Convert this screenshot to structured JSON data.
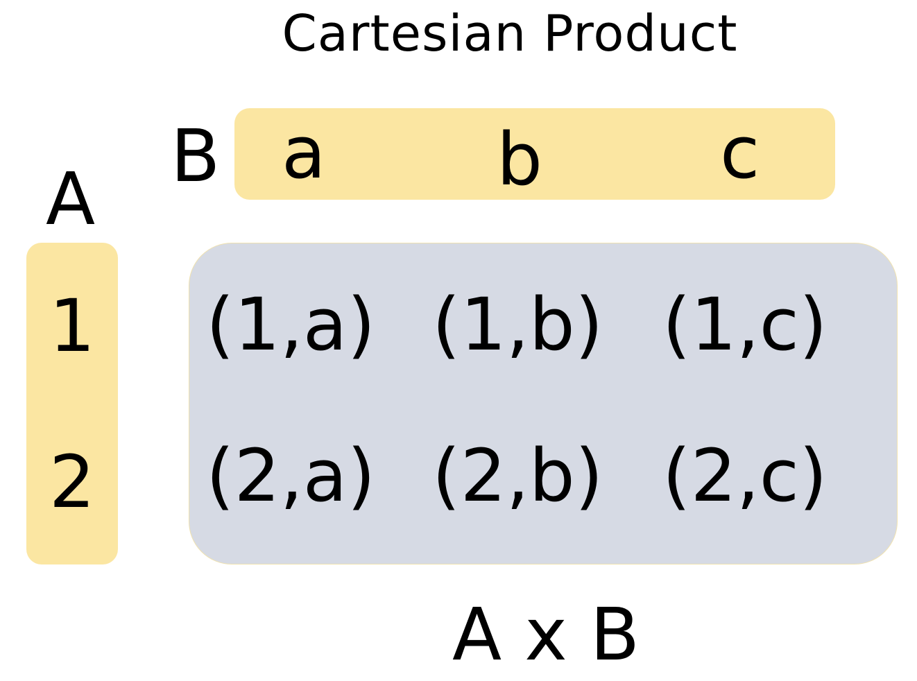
{
  "title": "Cartesian Product",
  "set_a": {
    "label": "A",
    "elements": [
      "1",
      "2"
    ]
  },
  "set_b": {
    "label": "B",
    "elements": [
      "a",
      "b",
      "c"
    ]
  },
  "product": {
    "label": "A x B",
    "rows": [
      [
        "(1,a)",
        "(1,b)",
        "(1,c)"
      ],
      [
        "(2,a)",
        "(2,b)",
        "(2,c)"
      ]
    ]
  },
  "colors": {
    "set_fill": "#fbe6a2",
    "product_fill": "#d6dae4",
    "text": "#000000",
    "background": "#ffffff"
  }
}
